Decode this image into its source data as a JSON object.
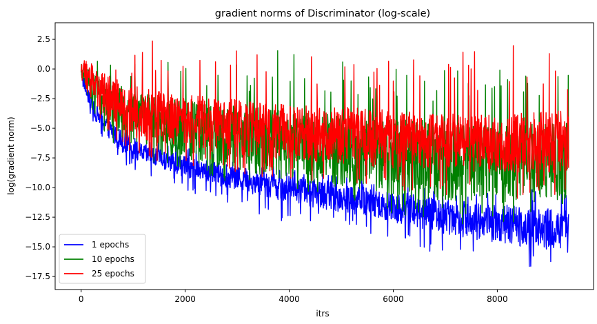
{
  "chart_data": {
    "type": "line",
    "title": "gradient norms of Discriminator (log-scale)",
    "xlabel": "itrs",
    "ylabel": "log(gradient norm)",
    "xlim": [
      -500,
      9850
    ],
    "ylim": [
      -18.6,
      3.9
    ],
    "x_ticks": [
      0,
      2000,
      4000,
      6000,
      8000
    ],
    "x_tick_labels": [
      "0",
      "2000",
      "4000",
      "6000",
      "8000"
    ],
    "y_ticks": [
      2.5,
      0.0,
      -2.5,
      -5.0,
      -7.5,
      -10.0,
      -12.5,
      -15.0,
      -17.5
    ],
    "y_tick_labels": [
      "2.5",
      "0.0",
      "−2.5",
      "−5.0",
      "−7.5",
      "−10.0",
      "−12.5",
      "−15.0",
      "−17.5"
    ],
    "grid": false,
    "legend_position": "lower-left",
    "x": [
      0,
      100,
      250,
      500,
      750,
      1000,
      1500,
      2000,
      2500,
      3000,
      3500,
      4000,
      4500,
      5000,
      5500,
      6000,
      6500,
      7000,
      7500,
      8000,
      8500,
      9000,
      9370
    ],
    "series": [
      {
        "name": "1 epochs",
        "color": "#0000ff",
        "low": [
          -0.6,
          -2.5,
          -4.2,
          -5.8,
          -6.9,
          -7.7,
          -8.4,
          -9.1,
          -9.7,
          -10.2,
          -10.8,
          -11.2,
          -11.7,
          -12.1,
          -12.6,
          -13.0,
          -13.4,
          -13.9,
          -14.3,
          -14.7,
          -15.0,
          -15.3,
          -15.5
        ],
        "high": [
          0.2,
          -1.5,
          -2.8,
          -4.0,
          -5.0,
          -6.0,
          -6.8,
          -7.3,
          -7.8,
          -8.2,
          -8.6,
          -9.0,
          -9.3,
          -9.6,
          -10.0,
          -10.3,
          -10.6,
          -10.9,
          -11.2,
          -11.4,
          -11.6,
          -11.8,
          -12.0
        ],
        "spike_max": [
          0.5,
          -1.0,
          -2.0,
          -3.0,
          -4.5,
          -5.5,
          -6.0,
          -6.5,
          -7.0,
          -7.5,
          -8.0,
          -8.5,
          -8.8,
          -9.0,
          -9.3,
          -9.5,
          -9.8,
          -10.0,
          -10.2,
          -9.8,
          -10.0,
          -10.3,
          -10.5
        ],
        "dip_min": [
          -0.8,
          -3.0,
          -4.8,
          -6.5,
          -7.8,
          -8.6,
          -9.4,
          -10.2,
          -11.0,
          -11.8,
          -12.6,
          -13.5,
          -12.8,
          -13.2,
          -14.0,
          -14.5,
          -15.2,
          -15.8,
          -16.4,
          -17.3,
          -17.0,
          -16.5,
          -16.1
        ]
      },
      {
        "name": "10 epochs",
        "color": "#008000",
        "low": [
          -0.6,
          -2.0,
          -3.4,
          -4.8,
          -5.8,
          -6.5,
          -7.2,
          -7.7,
          -8.2,
          -8.6,
          -9.0,
          -9.4,
          -9.7,
          -10.0,
          -10.3,
          -10.6,
          -10.9,
          -11.1,
          -11.3,
          -11.5,
          -11.4,
          -11.2,
          -11.0
        ],
        "high": [
          0.5,
          0.4,
          -0.5,
          -1.0,
          -1.4,
          -1.8,
          -2.3,
          -2.6,
          -2.9,
          -3.1,
          -3.3,
          -3.5,
          -3.7,
          -3.9,
          -4.0,
          -4.2,
          -4.3,
          -4.5,
          -4.6,
          -4.7,
          -4.6,
          -4.6,
          -4.5
        ],
        "spike_max": [
          0.8,
          1.0,
          0.8,
          0.6,
          0.4,
          0.5,
          1.4,
          0.8,
          0.5,
          0.6,
          0.4,
          2.5,
          0.5,
          2.0,
          0.3,
          0.2,
          0.0,
          0.1,
          0.3,
          0.6,
          0.9,
          0.4,
          0.2
        ],
        "dip_min": [
          -0.8,
          -2.5,
          -4.0,
          -5.8,
          -6.8,
          -7.6,
          -8.2,
          -8.6,
          -9.2,
          -9.7,
          -10.2,
          -10.8,
          -11.2,
          -11.5,
          -11.8,
          -12.2,
          -12.6,
          -12.9,
          -13.2,
          -13.4,
          -12.8,
          -12.0,
          -11.5
        ]
      },
      {
        "name": "25 epochs",
        "color": "#ff0000",
        "low": [
          -0.5,
          -1.8,
          -3.0,
          -4.2,
          -5.2,
          -5.8,
          -6.3,
          -6.7,
          -7.0,
          -7.3,
          -7.5,
          -7.7,
          -7.9,
          -8.1,
          -8.2,
          -8.4,
          -8.5,
          -8.6,
          -8.7,
          -8.8,
          -8.8,
          -8.8,
          -8.7
        ],
        "high": [
          0.6,
          0.5,
          0.0,
          -0.5,
          -1.0,
          -1.4,
          -1.8,
          -2.1,
          -2.4,
          -2.6,
          -2.8,
          -3.0,
          -3.1,
          -3.2,
          -3.3,
          -3.5,
          -3.6,
          -3.7,
          -3.8,
          -3.8,
          -3.7,
          -3.6,
          -3.5
        ],
        "spike_max": [
          0.8,
          0.7,
          0.3,
          0.2,
          0.8,
          1.5,
          2.8,
          1.2,
          1.0,
          1.6,
          1.4,
          2.2,
          1.5,
          2.3,
          1.5,
          0.8,
          1.2,
          1.0,
          1.7,
          1.6,
          2.4,
          1.8,
          0.5
        ],
        "dip_min": [
          -0.7,
          -2.2,
          -3.8,
          -5.3,
          -6.4,
          -7.2,
          -7.8,
          -8.2,
          -8.5,
          -8.8,
          -9.1,
          -9.4,
          -9.7,
          -9.9,
          -10.1,
          -10.3,
          -10.5,
          -10.7,
          -10.9,
          -11.0,
          -10.9,
          -10.7,
          -10.4
        ]
      }
    ]
  }
}
